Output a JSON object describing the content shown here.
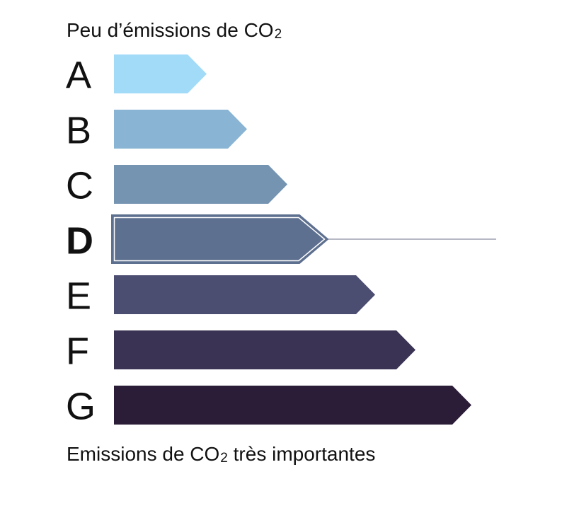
{
  "header": {
    "text": "Peu d’émissions de CO",
    "sub": "2"
  },
  "footer": {
    "text_before": "Emissions de CO",
    "sub": "2",
    "text_after": " très importantes"
  },
  "chart_data": {
    "type": "bar",
    "orientation": "horizontal",
    "categories": [
      "A",
      "B",
      "C",
      "D",
      "E",
      "F",
      "G"
    ],
    "values": [
      1,
      2,
      3,
      4,
      5,
      6,
      7
    ],
    "colors": [
      "#a2dbf8",
      "#89b4d3",
      "#7494b1",
      "#5e708f",
      "#4b4d71",
      "#3a3353",
      "#2b1c37"
    ],
    "selected": "D",
    "grid": false,
    "legend": "none"
  }
}
